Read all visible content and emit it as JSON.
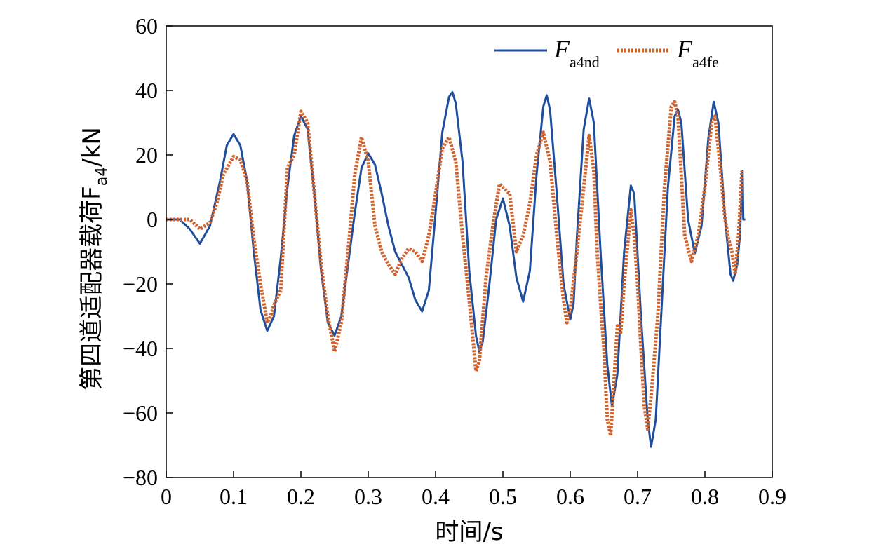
{
  "chart_data": {
    "type": "line",
    "xlabel": "时间/s",
    "ylabel": {
      "main": "第四道适配器载荷F",
      "sub": "a4",
      "unit": "/kN"
    },
    "xlim": [
      0,
      0.9
    ],
    "ylim": [
      -80,
      60
    ],
    "x_ticks": [
      0,
      0.1,
      0.2,
      0.3,
      0.4,
      0.5,
      0.6,
      0.7,
      0.8,
      0.9
    ],
    "x_tick_labels": [
      "0",
      "0.1",
      "0.2",
      "0.3",
      "0.4",
      "0.5",
      "0.6",
      "0.7",
      "0.8",
      "0.9"
    ],
    "y_ticks": [
      60,
      40,
      20,
      0,
      -20,
      -40,
      -60,
      -80
    ],
    "y_tick_labels": [
      "60",
      "40",
      "20",
      "0",
      "−20",
      "−40",
      "−60",
      "−80"
    ],
    "grid": false,
    "legend_position": "top-right",
    "series": [
      {
        "name": "F",
        "name_sub": "a4nd",
        "color": "#1f4e9c",
        "style": "solid",
        "points": [
          [
            0,
            0
          ],
          [
            0.02,
            0
          ],
          [
            0.035,
            -3
          ],
          [
            0.05,
            -7.5
          ],
          [
            0.065,
            -2
          ],
          [
            0.08,
            12
          ],
          [
            0.09,
            23
          ],
          [
            0.1,
            26.5
          ],
          [
            0.11,
            23
          ],
          [
            0.12,
            12
          ],
          [
            0.13,
            -10
          ],
          [
            0.14,
            -28
          ],
          [
            0.15,
            -34.5
          ],
          [
            0.16,
            -30
          ],
          [
            0.17,
            -12
          ],
          [
            0.18,
            10
          ],
          [
            0.19,
            26
          ],
          [
            0.2,
            32
          ],
          [
            0.21,
            28
          ],
          [
            0.22,
            8
          ],
          [
            0.23,
            -16
          ],
          [
            0.24,
            -32
          ],
          [
            0.25,
            -36
          ],
          [
            0.26,
            -30
          ],
          [
            0.27,
            -14
          ],
          [
            0.28,
            2
          ],
          [
            0.29,
            16
          ],
          [
            0.3,
            20.5
          ],
          [
            0.31,
            17
          ],
          [
            0.32,
            8
          ],
          [
            0.33,
            -2
          ],
          [
            0.34,
            -10
          ],
          [
            0.35,
            -14
          ],
          [
            0.36,
            -18
          ],
          [
            0.37,
            -25
          ],
          [
            0.38,
            -28.5
          ],
          [
            0.39,
            -22
          ],
          [
            0.4,
            2
          ],
          [
            0.41,
            27
          ],
          [
            0.42,
            38
          ],
          [
            0.425,
            39.5
          ],
          [
            0.43,
            36
          ],
          [
            0.44,
            18
          ],
          [
            0.45,
            -16
          ],
          [
            0.46,
            -36
          ],
          [
            0.465,
            -41
          ],
          [
            0.47,
            -38
          ],
          [
            0.48,
            -20
          ],
          [
            0.49,
            0
          ],
          [
            0.5,
            6.5
          ],
          [
            0.51,
            -2
          ],
          [
            0.52,
            -18
          ],
          [
            0.53,
            -25.5
          ],
          [
            0.54,
            -16
          ],
          [
            0.55,
            14
          ],
          [
            0.56,
            35
          ],
          [
            0.565,
            38.5
          ],
          [
            0.57,
            34
          ],
          [
            0.58,
            8
          ],
          [
            0.59,
            -20
          ],
          [
            0.6,
            -31
          ],
          [
            0.605,
            -26
          ],
          [
            0.61,
            -5
          ],
          [
            0.62,
            28
          ],
          [
            0.628,
            37.5
          ],
          [
            0.635,
            30
          ],
          [
            0.645,
            -10
          ],
          [
            0.655,
            -45
          ],
          [
            0.662,
            -58
          ],
          [
            0.67,
            -48
          ],
          [
            0.68,
            -10
          ],
          [
            0.69,
            10.5
          ],
          [
            0.695,
            8
          ],
          [
            0.705,
            -30
          ],
          [
            0.715,
            -62
          ],
          [
            0.72,
            -70.5
          ],
          [
            0.727,
            -62
          ],
          [
            0.735,
            -30
          ],
          [
            0.745,
            10
          ],
          [
            0.755,
            32
          ],
          [
            0.76,
            34
          ],
          [
            0.765,
            30
          ],
          [
            0.775,
            0
          ],
          [
            0.785,
            -10.5
          ],
          [
            0.795,
            -2
          ],
          [
            0.805,
            25
          ],
          [
            0.813,
            36.5
          ],
          [
            0.82,
            30
          ],
          [
            0.83,
            0
          ],
          [
            0.838,
            -17
          ],
          [
            0.842,
            -19
          ],
          [
            0.848,
            -14
          ],
          [
            0.852,
            -5
          ],
          [
            0.855,
            10
          ],
          [
            0.856,
            15
          ],
          [
            0.857,
            0
          ],
          [
            0.86,
            0
          ]
        ]
      },
      {
        "name": "F",
        "name_sub": "a4fe",
        "color": "#d2622b",
        "style": "dotted",
        "points": [
          [
            0,
            0
          ],
          [
            0.035,
            0
          ],
          [
            0.05,
            -3
          ],
          [
            0.065,
            -1
          ],
          [
            0.075,
            5
          ],
          [
            0.085,
            14
          ],
          [
            0.1,
            19.5
          ],
          [
            0.11,
            18.5
          ],
          [
            0.12,
            12
          ],
          [
            0.13,
            -6
          ],
          [
            0.14,
            -20
          ],
          [
            0.15,
            -32
          ],
          [
            0.155,
            -30
          ],
          [
            0.16,
            -26.5
          ],
          [
            0.17,
            -22
          ],
          [
            0.18,
            16
          ],
          [
            0.19,
            20
          ],
          [
            0.2,
            33.5
          ],
          [
            0.21,
            30
          ],
          [
            0.22,
            8
          ],
          [
            0.23,
            -14
          ],
          [
            0.24,
            -30
          ],
          [
            0.25,
            -41
          ],
          [
            0.26,
            -32
          ],
          [
            0.27,
            -10
          ],
          [
            0.28,
            14
          ],
          [
            0.29,
            25.5
          ],
          [
            0.3,
            18
          ],
          [
            0.31,
            -2
          ],
          [
            0.32,
            -10
          ],
          [
            0.33,
            -14
          ],
          [
            0.34,
            -17
          ],
          [
            0.35,
            -12
          ],
          [
            0.36,
            -9
          ],
          [
            0.37,
            -10
          ],
          [
            0.38,
            -13
          ],
          [
            0.39,
            -5
          ],
          [
            0.4,
            8
          ],
          [
            0.41,
            22
          ],
          [
            0.42,
            25.5
          ],
          [
            0.43,
            18
          ],
          [
            0.44,
            -5
          ],
          [
            0.45,
            -25
          ],
          [
            0.46,
            -47
          ],
          [
            0.465,
            -44
          ],
          [
            0.475,
            -18
          ],
          [
            0.485,
            -2
          ],
          [
            0.495,
            11
          ],
          [
            0.5,
            10
          ],
          [
            0.51,
            8
          ],
          [
            0.52,
            -10
          ],
          [
            0.53,
            -5
          ],
          [
            0.54,
            5
          ],
          [
            0.55,
            20
          ],
          [
            0.56,
            27
          ],
          [
            0.57,
            18
          ],
          [
            0.58,
            -5
          ],
          [
            0.59,
            -25
          ],
          [
            0.595,
            -32
          ],
          [
            0.6,
            -28
          ],
          [
            0.61,
            -10
          ],
          [
            0.62,
            10
          ],
          [
            0.628,
            26
          ],
          [
            0.635,
            15
          ],
          [
            0.64,
            -10
          ],
          [
            0.645,
            -26
          ],
          [
            0.65,
            -40
          ],
          [
            0.655,
            -62
          ],
          [
            0.66,
            -67
          ],
          [
            0.665,
            -50
          ],
          [
            0.67,
            -33
          ],
          [
            0.675,
            -35
          ],
          [
            0.68,
            -20
          ],
          [
            0.69,
            3
          ],
          [
            0.695,
            -5
          ],
          [
            0.7,
            -20
          ],
          [
            0.705,
            -40
          ],
          [
            0.71,
            -58
          ],
          [
            0.715,
            -65
          ],
          [
            0.72,
            -55
          ],
          [
            0.73,
            -30
          ],
          [
            0.74,
            10
          ],
          [
            0.75,
            35
          ],
          [
            0.755,
            36.5
          ],
          [
            0.76,
            32
          ],
          [
            0.77,
            -5
          ],
          [
            0.78,
            -13
          ],
          [
            0.79,
            -5
          ],
          [
            0.8,
            10
          ],
          [
            0.81,
            30
          ],
          [
            0.815,
            32
          ],
          [
            0.82,
            22
          ],
          [
            0.83,
            0
          ],
          [
            0.835,
            -6
          ],
          [
            0.84,
            -10
          ],
          [
            0.845,
            -17
          ],
          [
            0.85,
            -5
          ],
          [
            0.855,
            15
          ]
        ]
      }
    ]
  }
}
